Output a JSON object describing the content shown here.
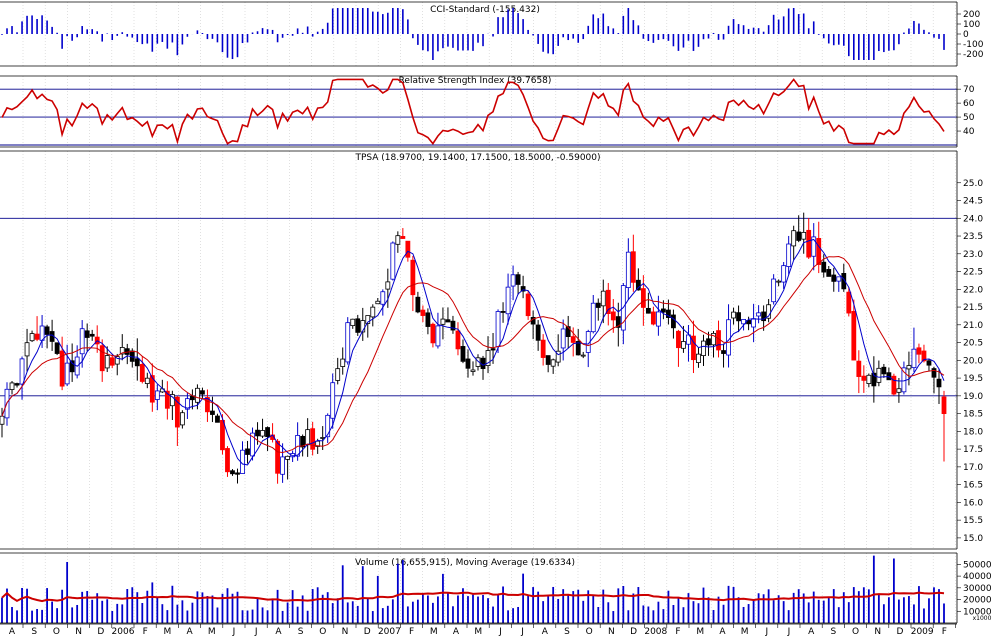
{
  "chart_data": [
    {
      "type": "bar",
      "title": "CCI-Standard (-155.432)",
      "ylim": [
        -300,
        300
      ],
      "yticks": [
        200,
        100,
        0,
        -100,
        -200
      ]
    },
    {
      "type": "line",
      "title": "Relative Strength Index (39.7658)",
      "ylim": [
        30,
        78
      ],
      "yticks": [
        70,
        60,
        50,
        40
      ],
      "reference_lines": [
        70,
        50,
        30
      ]
    },
    {
      "type": "candlestick",
      "title": "TPSA (18.9700, 19.1400, 17.1500, 18.5000, -0.59000)",
      "ylim": [
        14.8,
        25.5
      ],
      "yticks": [
        25.0,
        24.5,
        24.0,
        23.5,
        23.0,
        22.5,
        22.0,
        21.5,
        21.0,
        20.5,
        20.0,
        19.5,
        19.0,
        18.5,
        18.0,
        17.5,
        17.0,
        16.5,
        16.0,
        15.5,
        15.0
      ],
      "horizontal_lines": [
        24.0,
        19.0
      ],
      "ytick_labels": [
        "25.0",
        "24.5",
        "24.0",
        "23.5",
        "23.0",
        "22.5",
        "22.0",
        "21.5",
        "21.0",
        "20.5",
        "20.0",
        "19.5",
        "19.0",
        "18.5",
        "18.0",
        "17.5",
        "17.0",
        "16.5",
        "16.0",
        "15.5",
        "15.0"
      ]
    },
    {
      "type": "bar",
      "title": "Volume (16,655,915), Moving Average (19.6334)",
      "ylim": [
        0,
        58000
      ],
      "yticks": [
        50000,
        40000,
        30000,
        20000,
        10000
      ],
      "ytick_labels": [
        "50000",
        "40000",
        "30000",
        "20000",
        "10000"
      ],
      "unit_label": "x1000"
    }
  ],
  "x_axis": {
    "labels": [
      "A",
      "S",
      "O",
      "N",
      "D",
      "2006",
      "F",
      "M",
      "A",
      "M",
      "J",
      "J",
      "A",
      "S",
      "O",
      "N",
      "D",
      "2007",
      "F",
      "M",
      "A",
      "M",
      "J",
      "J",
      "A",
      "S",
      "O",
      "N",
      "D",
      "2008",
      "F",
      "M",
      "A",
      "M",
      "J",
      "J",
      "A",
      "S",
      "O",
      "N",
      "D",
      "2009",
      "F"
    ]
  },
  "colors": {
    "up": "#0000cc",
    "down": "#ff0000",
    "neutral": "#000000",
    "ma_fast": "#0000cc",
    "ma_slow": "#cc0000",
    "grid": "#cccccc",
    "frame": "#00008b"
  }
}
